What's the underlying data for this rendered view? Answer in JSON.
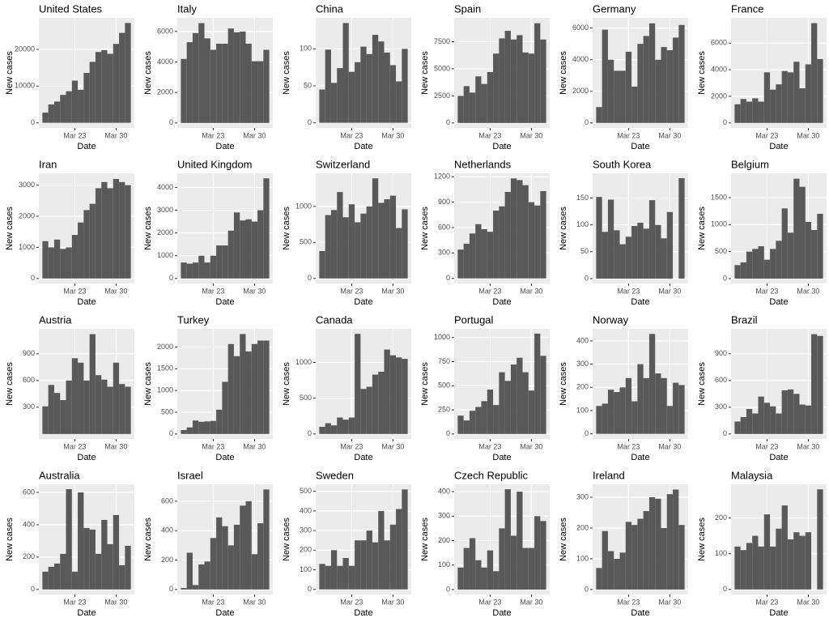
{
  "chart_data": [
    {
      "type": "bar",
      "title": "United States",
      "x_label": "Date",
      "y_label": "New cases",
      "categories": [
        null,
        null,
        null,
        null,
        null,
        "Mar 23",
        null,
        null,
        null,
        null,
        null,
        null,
        "Mar 30",
        null,
        null
      ],
      "values": [
        2800,
        5000,
        5800,
        7600,
        8600,
        11500,
        9000,
        13600,
        16600,
        19300,
        19800,
        18800,
        21500,
        24500,
        27200
      ],
      "color": "#595959",
      "ylim": [
        -1400,
        28600
      ],
      "yticks": [
        0,
        10000,
        20000
      ],
      "grid": true
    },
    {
      "type": "bar",
      "title": "Italy",
      "x_label": "Date",
      "y_label": "New cases",
      "categories": [
        null,
        null,
        null,
        null,
        null,
        "Mar 23",
        null,
        null,
        null,
        null,
        null,
        null,
        "Mar 30",
        null,
        null
      ],
      "values": [
        4200,
        5300,
        5900,
        6550,
        5550,
        4800,
        5200,
        5200,
        6200,
        5950,
        6000,
        5200,
        4050,
        4050,
        4800
      ],
      "color": "#595959",
      "ylim": [
        -330,
        6900
      ],
      "yticks": [
        0,
        2000,
        4000,
        6000
      ],
      "grid": true
    },
    {
      "type": "bar",
      "title": "China",
      "x_label": "Date",
      "y_label": "New cases",
      "categories": [
        null,
        null,
        null,
        null,
        null,
        "Mar 23",
        null,
        null,
        null,
        null,
        null,
        null,
        "Mar 30",
        null,
        null
      ],
      "values": [
        45,
        99,
        54,
        74,
        135,
        69,
        82,
        103,
        93,
        119,
        110,
        95,
        78,
        56,
        100
      ],
      "color": "#595959",
      "ylim": [
        -7,
        142
      ],
      "yticks": [
        0,
        50,
        100
      ],
      "grid": true
    },
    {
      "type": "bar",
      "title": "Spain",
      "x_label": "Date",
      "y_label": "New cases",
      "categories": [
        null,
        null,
        null,
        null,
        null,
        "Mar 23",
        null,
        null,
        null,
        null,
        null,
        null,
        "Mar 30",
        null,
        null
      ],
      "values": [
        2500,
        3400,
        2800,
        4300,
        3600,
        4700,
        6400,
        7800,
        8500,
        7700,
        8100,
        6500,
        6400,
        9200,
        7700
      ],
      "color": "#595959",
      "ylim": [
        -460,
        9700
      ],
      "yticks": [
        0,
        2500,
        5000,
        7500
      ],
      "grid": true
    },
    {
      "type": "bar",
      "title": "Germany",
      "x_label": "Date",
      "y_label": "New cases",
      "categories": [
        null,
        null,
        null,
        null,
        null,
        "Mar 23",
        null,
        null,
        null,
        null,
        null,
        null,
        "Mar 30",
        null,
        null
      ],
      "values": [
        1000,
        5900,
        4000,
        3300,
        3300,
        4500,
        2300,
        5000,
        5500,
        6300,
        4000,
        4800,
        4600,
        5400,
        6200
      ],
      "color": "#595959",
      "ylim": [
        -320,
        6650
      ],
      "yticks": [
        0,
        2000,
        4000,
        6000
      ],
      "grid": true
    },
    {
      "type": "bar",
      "title": "France",
      "x_label": "Date",
      "y_label": "New cases",
      "categories": [
        null,
        null,
        null,
        null,
        null,
        "Mar 23",
        null,
        null,
        null,
        null,
        null,
        null,
        "Mar 30",
        null,
        null
      ],
      "values": [
        1400,
        1800,
        1600,
        1850,
        1600,
        3800,
        2500,
        2900,
        3900,
        3800,
        4600,
        2600,
        4400,
        7500,
        4800
      ],
      "color": "#595959",
      "ylim": [
        -380,
        7900
      ],
      "yticks": [
        0,
        2000,
        4000,
        6000
      ],
      "grid": true
    },
    {
      "type": "bar",
      "title": "Iran",
      "x_label": "Date",
      "y_label": "New cases",
      "categories": [
        null,
        null,
        null,
        null,
        null,
        "Mar 23",
        null,
        null,
        null,
        null,
        null,
        null,
        "Mar 30",
        null,
        null
      ],
      "values": [
        1200,
        1000,
        1250,
        950,
        1000,
        1400,
        1800,
        2200,
        2400,
        2900,
        3100,
        2900,
        3200,
        3100,
        3000
      ],
      "color": "#595959",
      "ylim": [
        -160,
        3380
      ],
      "yticks": [
        0,
        1000,
        2000,
        3000
      ],
      "grid": true
    },
    {
      "type": "bar",
      "title": "United Kingdom",
      "x_label": "Date",
      "y_label": "New cases",
      "categories": [
        null,
        null,
        null,
        null,
        null,
        "Mar 23",
        null,
        null,
        null,
        null,
        null,
        null,
        "Mar 30",
        null,
        null
      ],
      "values": [
        700,
        650,
        700,
        1000,
        700,
        1000,
        1450,
        1450,
        2100,
        2900,
        2550,
        2600,
        2500,
        3000,
        4400
      ],
      "color": "#595959",
      "ylim": [
        -220,
        4620
      ],
      "yticks": [
        0,
        1000,
        2000,
        3000,
        4000
      ],
      "grid": true
    },
    {
      "type": "bar",
      "title": "Switzerland",
      "x_label": "Date",
      "y_label": "New cases",
      "categories": [
        null,
        null,
        null,
        null,
        null,
        "Mar 23",
        null,
        null,
        null,
        null,
        null,
        null,
        "Mar 30",
        null,
        null
      ],
      "values": [
        380,
        880,
        950,
        1200,
        850,
        1030,
        780,
        900,
        1000,
        1390,
        1050,
        1100,
        1150,
        700,
        960
      ],
      "color": "#595959",
      "ylim": [
        -70,
        1460
      ],
      "yticks": [
        0,
        500,
        1000
      ],
      "grid": true
    },
    {
      "type": "bar",
      "title": "Netherlands",
      "x_label": "Date",
      "y_label": "New cases",
      "categories": [
        null,
        null,
        null,
        null,
        null,
        "Mar 23",
        null,
        null,
        null,
        null,
        null,
        null,
        "Mar 30",
        null,
        null
      ],
      "values": [
        340,
        410,
        530,
        640,
        580,
        550,
        800,
        850,
        1020,
        1180,
        1160,
        1100,
        900,
        860,
        1030
      ],
      "color": "#595959",
      "ylim": [
        -60,
        1240
      ],
      "yticks": [
        0,
        300,
        600,
        900,
        1200
      ],
      "grid": true
    },
    {
      "type": "bar",
      "title": "South Korea",
      "x_label": "Date",
      "y_label": "New cases",
      "categories": [
        null,
        null,
        null,
        null,
        null,
        "Mar 23",
        null,
        null,
        null,
        null,
        null,
        null,
        "Mar 30",
        null,
        null
      ],
      "values": [
        152,
        87,
        147,
        90,
        64,
        78,
        98,
        104,
        93,
        146,
        100,
        75,
        124,
        0,
        187
      ],
      "color": "#595959",
      "ylim": [
        -9,
        196
      ],
      "yticks": [
        0,
        50,
        100,
        150
      ],
      "grid": true
    },
    {
      "type": "bar",
      "title": "Belgium",
      "x_label": "Date",
      "y_label": "New cases",
      "categories": [
        null,
        null,
        null,
        null,
        null,
        "Mar 23",
        null,
        null,
        null,
        null,
        null,
        null,
        "Mar 30",
        null,
        null
      ],
      "values": [
        250,
        300,
        500,
        550,
        600,
        350,
        550,
        700,
        1300,
        850,
        1850,
        1700,
        1050,
        900,
        1200
      ],
      "color": "#595959",
      "ylim": [
        -90,
        1950
      ],
      "yticks": [
        0,
        500,
        1000,
        1500
      ],
      "grid": true
    },
    {
      "type": "bar",
      "title": "Austria",
      "x_label": "Date",
      "y_label": "New cases",
      "categories": [
        null,
        null,
        null,
        null,
        null,
        "Mar 23",
        null,
        null,
        null,
        null,
        null,
        null,
        "Mar 30",
        null,
        null
      ],
      "values": [
        310,
        550,
        460,
        380,
        600,
        850,
        800,
        600,
        1120,
        660,
        610,
        530,
        800,
        560,
        530
      ],
      "color": "#595959",
      "ylim": [
        -56,
        1180
      ],
      "yticks": [
        300,
        600,
        900
      ],
      "grid": true
    },
    {
      "type": "bar",
      "title": "Turkey",
      "x_label": "Date",
      "y_label": "New cases",
      "categories": [
        null,
        null,
        null,
        null,
        null,
        "Mar 23",
        null,
        null,
        null,
        null,
        null,
        null,
        "Mar 30",
        null,
        null
      ],
      "values": [
        90,
        150,
        310,
        280,
        290,
        300,
        560,
        1200,
        2070,
        1790,
        2300,
        1900,
        2070,
        2150,
        2150
      ],
      "color": "#595959",
      "ylim": [
        -115,
        2420
      ],
      "yticks": [
        0,
        500,
        1000,
        1500,
        2000
      ],
      "grid": true
    },
    {
      "type": "bar",
      "title": "Canada",
      "x_label": "Date",
      "y_label": "New cases",
      "categories": [
        null,
        null,
        null,
        null,
        null,
        "Mar 23",
        null,
        null,
        null,
        null,
        null,
        null,
        "Mar 30",
        null,
        null
      ],
      "values": [
        100,
        150,
        120,
        230,
        200,
        230,
        1400,
        630,
        660,
        830,
        870,
        1180,
        1100,
        1070,
        1050
      ],
      "color": "#595959",
      "ylim": [
        -70,
        1470
      ],
      "yticks": [
        0,
        500,
        1000
      ],
      "grid": true
    },
    {
      "type": "bar",
      "title": "Portugal",
      "x_label": "Date",
      "y_label": "New cases",
      "categories": [
        null,
        null,
        null,
        null,
        null,
        "Mar 23",
        null,
        null,
        null,
        null,
        null,
        null,
        "Mar 30",
        null,
        null
      ],
      "values": [
        190,
        140,
        240,
        280,
        340,
        460,
        300,
        640,
        550,
        720,
        790,
        640,
        450,
        1040,
        810
      ],
      "color": "#595959",
      "ylim": [
        -52,
        1090
      ],
      "yticks": [
        0,
        250,
        500,
        750,
        1000
      ],
      "grid": true
    },
    {
      "type": "bar",
      "title": "Norway",
      "x_label": "Date",
      "y_label": "New cases",
      "categories": [
        null,
        null,
        null,
        null,
        null,
        "Mar 23",
        null,
        null,
        null,
        null,
        null,
        null,
        "Mar 30",
        null,
        null
      ],
      "values": [
        120,
        130,
        190,
        180,
        200,
        240,
        140,
        300,
        240,
        430,
        260,
        240,
        120,
        220,
        210
      ],
      "color": "#595959",
      "ylim": [
        -22,
        452
      ],
      "yticks": [
        0,
        100,
        200,
        300,
        400
      ],
      "grid": true
    },
    {
      "type": "bar",
      "title": "Brazil",
      "x_label": "Date",
      "y_label": "New cases",
      "categories": [
        null,
        null,
        null,
        null,
        null,
        "Mar 23",
        null,
        null,
        null,
        null,
        null,
        null,
        "Mar 30",
        null,
        null
      ],
      "values": [
        140,
        190,
        280,
        230,
        420,
        350,
        310,
        230,
        490,
        500,
        450,
        330,
        320,
        1120,
        1100
      ],
      "color": "#595959",
      "ylim": [
        -56,
        1180
      ],
      "yticks": [
        0,
        300,
        600,
        900
      ],
      "grid": true
    },
    {
      "type": "bar",
      "title": "Australia",
      "x_label": "Date",
      "y_label": "New cases",
      "categories": [
        null,
        null,
        null,
        null,
        null,
        "Mar 23",
        null,
        null,
        null,
        null,
        null,
        null,
        "Mar 30",
        null,
        null
      ],
      "values": [
        110,
        140,
        160,
        220,
        620,
        110,
        600,
        380,
        370,
        220,
        430,
        280,
        460,
        150,
        270
      ],
      "color": "#595959",
      "ylim": [
        -31,
        650
      ],
      "yticks": [
        0,
        200,
        400,
        600
      ],
      "grid": true
    },
    {
      "type": "bar",
      "title": "Israel",
      "x_label": "Date",
      "y_label": "New cases",
      "categories": [
        null,
        null,
        null,
        null,
        null,
        "Mar 23",
        null,
        null,
        null,
        null,
        null,
        null,
        "Mar 30",
        null,
        null
      ],
      "values": [
        10,
        250,
        30,
        170,
        190,
        350,
        490,
        430,
        300,
        440,
        570,
        600,
        240,
        450,
        680
      ],
      "color": "#595959",
      "ylim": [
        -34,
        715
      ],
      "yticks": [
        0,
        200,
        400,
        600
      ],
      "grid": true
    },
    {
      "type": "bar",
      "title": "Sweden",
      "x_label": "Date",
      "y_label": "New cases",
      "categories": [
        null,
        null,
        null,
        null,
        null,
        "Mar 23",
        null,
        null,
        null,
        null,
        null,
        null,
        "Mar 30",
        null,
        null
      ],
      "values": [
        130,
        120,
        200,
        120,
        160,
        120,
        250,
        250,
        300,
        240,
        400,
        250,
        330,
        410,
        510
      ],
      "color": "#595959",
      "ylim": [
        -26,
        536
      ],
      "yticks": [
        0,
        100,
        200,
        300,
        400,
        500
      ],
      "grid": true
    },
    {
      "type": "bar",
      "title": "Czech Republic",
      "x_label": "Date",
      "y_label": "New cases",
      "categories": [
        null,
        null,
        null,
        null,
        null,
        "Mar 23",
        null,
        null,
        null,
        null,
        null,
        null,
        "Mar 30",
        null,
        null
      ],
      "values": [
        90,
        170,
        210,
        120,
        90,
        160,
        75,
        250,
        410,
        220,
        400,
        170,
        170,
        300,
        280
      ],
      "color": "#595959",
      "ylim": [
        -20,
        430
      ],
      "yticks": [
        0,
        100,
        200,
        300,
        400
      ],
      "grid": true
    },
    {
      "type": "bar",
      "title": "Ireland",
      "x_label": "Date",
      "y_label": "New cases",
      "categories": [
        null,
        null,
        null,
        null,
        null,
        "Mar 23",
        null,
        null,
        null,
        null,
        null,
        null,
        "Mar 30",
        null,
        null
      ],
      "values": [
        70,
        190,
        125,
        100,
        120,
        220,
        210,
        230,
        255,
        300,
        295,
        200,
        310,
        325,
        210
      ],
      "color": "#595959",
      "ylim": [
        -16,
        342
      ],
      "yticks": [
        0,
        100,
        200,
        300
      ],
      "grid": true
    },
    {
      "type": "bar",
      "title": "Malaysia",
      "x_label": "Date",
      "y_label": "New cases",
      "categories": [
        null,
        null,
        null,
        null,
        null,
        "Mar 23",
        null,
        null,
        null,
        null,
        null,
        null,
        "Mar 30",
        null,
        null
      ],
      "values": [
        120,
        110,
        130,
        150,
        120,
        210,
        120,
        170,
        235,
        140,
        160,
        150,
        160,
        0,
        280
      ],
      "color": "#595959",
      "ylim": [
        -14,
        294
      ],
      "yticks": [
        0,
        100,
        200
      ],
      "grid": true
    }
  ]
}
